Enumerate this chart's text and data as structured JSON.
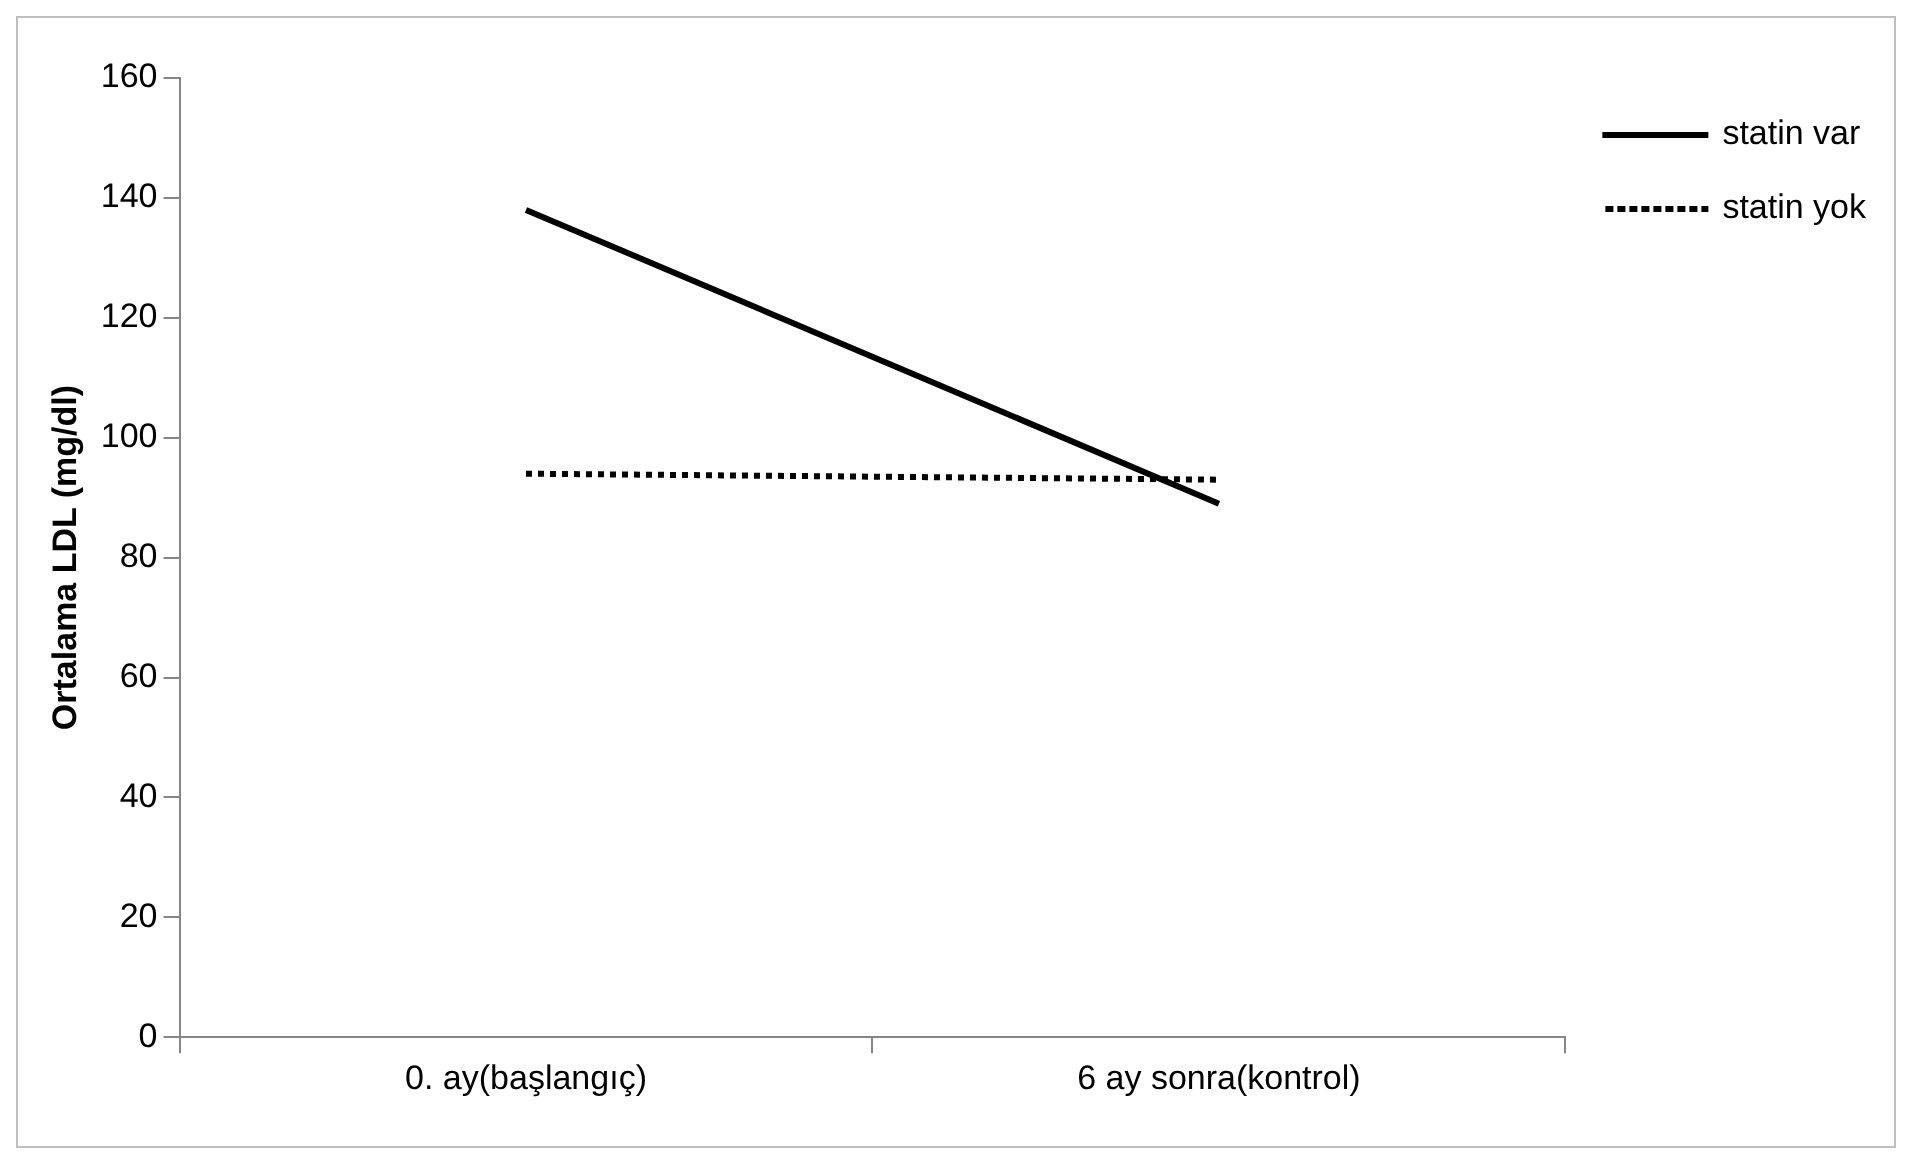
{
  "chart_data": {
    "type": "line",
    "ylabel": "Ortalama LDL (mg/dl)",
    "categories": [
      "0. ay(başlangıç)",
      "6 ay sonra(kontrol)"
    ],
    "series": [
      {
        "name": "statin var",
        "color": "#000000",
        "values": [
          138,
          89
        ],
        "line_style": "solid"
      },
      {
        "name": "statin yok",
        "color": "#000000",
        "values": [
          94,
          93
        ],
        "line_style": "dotted"
      }
    ],
    "ylim": [
      0,
      160
    ],
    "yticks": [
      0,
      20,
      40,
      60,
      80,
      100,
      120,
      140,
      160
    ],
    "grid": false,
    "legend": "top right",
    "marker": "none"
  }
}
